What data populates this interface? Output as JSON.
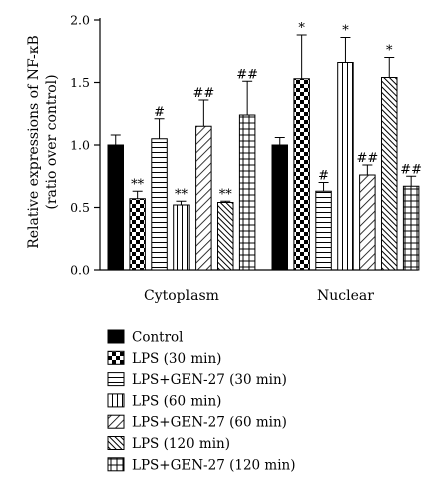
{
  "chart_data": {
    "type": "bar",
    "ylabel_line1": "Relative expressions of NF-κB",
    "ylabel_line2": "(ratio over control)",
    "ylim": [
      0,
      2.0
    ],
    "yticks": [
      "0.0",
      "0.5",
      "1.0",
      "1.5",
      "2.0"
    ],
    "ytick_values": [
      0,
      0.5,
      1.0,
      1.5,
      2.0
    ],
    "categories": [
      "Cytoplasm",
      "Nuclear"
    ],
    "legend_position": "bottom",
    "series": [
      {
        "name": "Control",
        "pattern": "solid",
        "values": [
          1.0,
          1.0
        ],
        "errors": [
          0.08,
          0.06
        ],
        "labels": [
          "",
          ""
        ]
      },
      {
        "name": "LPS (30 min)",
        "pattern": "checker",
        "values": [
          0.57,
          1.53
        ],
        "errors": [
          0.06,
          0.35
        ],
        "labels": [
          "**",
          "*"
        ]
      },
      {
        "name": "LPS+GEN-27 (30 min)",
        "pattern": "hlines",
        "values": [
          1.05,
          0.63
        ],
        "errors": [
          0.16,
          0.07
        ],
        "labels": [
          "#",
          "#"
        ]
      },
      {
        "name": "LPS (60 min)",
        "pattern": "vlines",
        "values": [
          0.52,
          1.66
        ],
        "errors": [
          0.03,
          0.2
        ],
        "labels": [
          "**",
          "*"
        ]
      },
      {
        "name": "LPS+GEN-27 (60 min)",
        "pattern": "diag-right",
        "values": [
          1.15,
          0.76
        ],
        "errors": [
          0.21,
          0.08
        ],
        "labels": [
          "##",
          "##"
        ]
      },
      {
        "name": "LPS (120 min)",
        "pattern": "diag-left",
        "values": [
          0.54,
          1.54
        ],
        "errors": [
          0.01,
          0.16
        ],
        "labels": [
          "**",
          "*"
        ]
      },
      {
        "name": "LPS+GEN-27 (120 min)",
        "pattern": "grid",
        "values": [
          1.24,
          0.67
        ],
        "errors": [
          0.27,
          0.08
        ],
        "labels": [
          "##",
          "##"
        ]
      }
    ]
  }
}
